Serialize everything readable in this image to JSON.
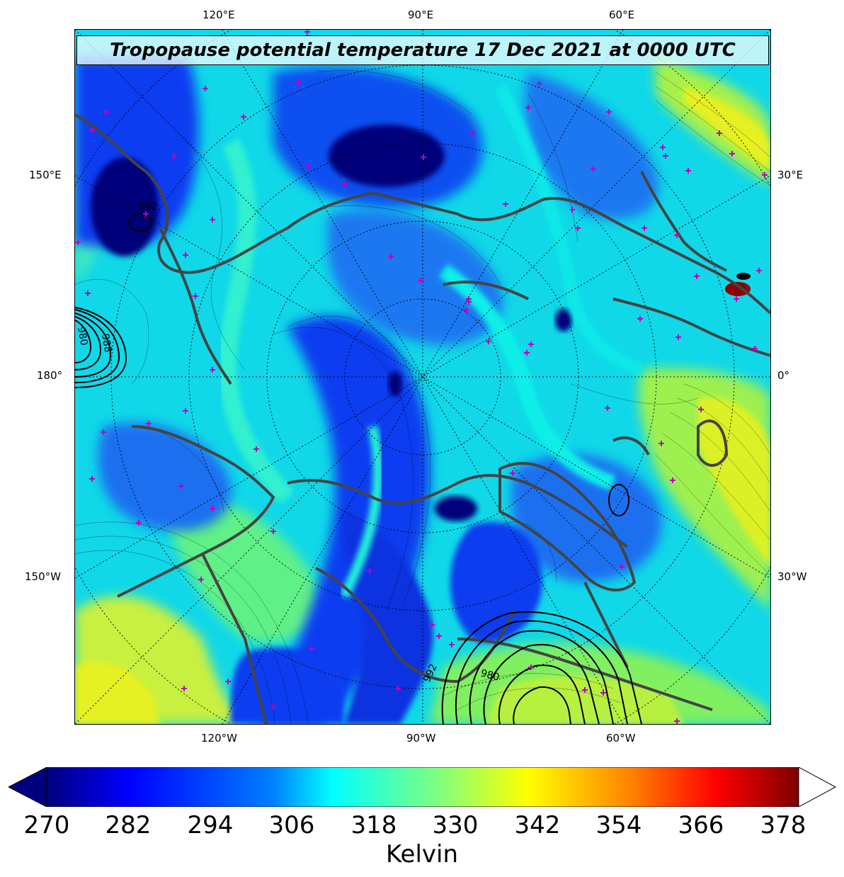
{
  "map": {
    "title": "Tropopause potential temperature 17 Dec 2021 at 0000 UTC",
    "top_ticks": [
      "120°E",
      "90°E",
      "60°E"
    ],
    "bottom_ticks": [
      "120°W",
      "90°W",
      "60°W"
    ],
    "left_ticks": [
      "150°E",
      "180°",
      "150°W"
    ],
    "right_ticks": [
      "30°E",
      "0°",
      "30°W"
    ],
    "pressure_labels": [
      "992",
      "980",
      "988",
      "992",
      "980"
    ],
    "colors": {
      "deep": "#00007a",
      "blue": "#0a3cf0",
      "mid_blue": "#1e78f0",
      "cyan": "#10f0e8",
      "green": "#6ef070",
      "yellow": "#e6f020",
      "coast": "#444444",
      "marker": "#c000c0"
    }
  },
  "colorbar": {
    "ticks": [
      "270",
      "282",
      "294",
      "306",
      "318",
      "330",
      "342",
      "354",
      "366",
      "378"
    ],
    "unit": "Kelvin",
    "stops": [
      "#00007f",
      "#0000ff",
      "#007fff",
      "#00ffff",
      "#7fff7f",
      "#ffff00",
      "#ff7f00",
      "#ff0000",
      "#7f0000"
    ]
  }
}
